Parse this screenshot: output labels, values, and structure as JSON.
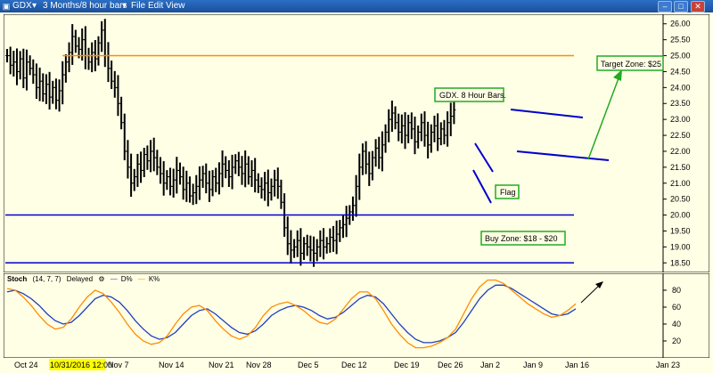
{
  "window": {
    "symbol": "GDX",
    "period": "3 Months/8 hour bars",
    "menu": [
      "File",
      "Edit",
      "View"
    ],
    "controls": [
      "–",
      "□",
      "✕"
    ]
  },
  "colors": {
    "bar": "#000000",
    "target_line": "#ff8c00",
    "channel": "#0000cc",
    "stoch_d": "#1f3fbf",
    "stoch_k": "#ff8c00",
    "annotation_box": "#22aa22",
    "arrow": "#22aa22",
    "background": "#ffffe6"
  },
  "chart_data": [
    {
      "type": "ohlc",
      "title": "GDX. 8 Hour Bars.",
      "x_ticks": [
        "Oct 24",
        "10/31/2016 12:00",
        "Nov 7",
        "Nov 14",
        "Nov 21",
        "Nov 28",
        "Dec 5",
        "Dec 12",
        "Dec 19",
        "Dec 26",
        "Jan 2",
        "Jan 9",
        "Jan 16",
        "Jan 23"
      ],
      "highlighted_x_tick": "10/31/2016 12:00",
      "y_ticks": [
        "18.50",
        "19.00",
        "19.50",
        "20.00",
        "20.50",
        "21.00",
        "21.50",
        "22.00",
        "22.50",
        "23.00",
        "23.50",
        "24.00",
        "24.50",
        "25.00",
        "25.50",
        "26.00"
      ],
      "ylim": [
        18.2,
        26.3
      ],
      "grid": false,
      "close_series": [
        25.0,
        24.7,
        24.8,
        24.5,
        24.9,
        24.3,
        24.8,
        24.6,
        24.4,
        24.0,
        24.2,
        23.8,
        24.1,
        23.7,
        24.0,
        23.6,
        23.9,
        24.4,
        24.8,
        25.1,
        25.6,
        25.3,
        25.2,
        25.5,
        25.0,
        24.8,
        25.1,
        24.9,
        25.4,
        25.8,
        25.0,
        24.6,
        24.2,
        24.0,
        23.5,
        22.9,
        22.0,
        21.5,
        21.0,
        21.2,
        21.6,
        21.4,
        21.9,
        21.7,
        22.0,
        21.8,
        21.5,
        21.3,
        21.0,
        21.2,
        20.9,
        21.1,
        21.4,
        21.2,
        20.8,
        21.0,
        20.6,
        20.7,
        20.9,
        21.1,
        21.3,
        21.0,
        20.8,
        21.2,
        21.0,
        21.3,
        21.6,
        21.4,
        21.2,
        21.5,
        21.7,
        21.5,
        21.3,
        21.6,
        21.2,
        21.4,
        21.1,
        20.9,
        20.8,
        21.0,
        20.7,
        20.9,
        21.1,
        20.9,
        20.4,
        19.6,
        19.1,
        18.9,
        19.0,
        19.2,
        18.8,
        19.1,
        19.0,
        18.9,
        18.8,
        19.0,
        19.2,
        19.0,
        19.1,
        19.3,
        19.2,
        19.4,
        19.6,
        19.7,
        19.9,
        20.1,
        20.3,
        20.9,
        21.5,
        22.0,
        21.6,
        21.3,
        21.8,
        22.1,
        21.8,
        22.2,
        22.6,
        23.0,
        23.2,
        22.9,
        22.6,
        22.8,
        22.5,
        22.9,
        22.7,
        22.3,
        22.6,
        22.9,
        22.5,
        22.2,
        22.6,
        22.8,
        22.4,
        22.7,
        22.5,
        22.9,
        23.1,
        23.3
      ],
      "horizontal_lines": [
        {
          "name": "Target Zone",
          "value": 25.0
        },
        {
          "name": "Buy Zone top",
          "value": 20.0
        },
        {
          "name": "Buy Zone bottom",
          "value": 18.5
        }
      ],
      "annotations": {
        "title_box": "GDX. 8 Hour Bars.",
        "target": "Target Zone: $25",
        "flag": "Flag",
        "buy": "Buy Zone: $18  - $20"
      }
    },
    {
      "type": "line",
      "title": "Stoch",
      "params": "(14, 7, 7)",
      "mode": "Delayed",
      "series_names": [
        "D%",
        "K%"
      ],
      "y_ticks": [
        "20",
        "40",
        "60",
        "80"
      ],
      "ylim": [
        0,
        100
      ],
      "series": [
        {
          "name": "D%",
          "values": [
            78,
            80,
            76,
            70,
            62,
            52,
            44,
            40,
            42,
            50,
            60,
            70,
            74,
            72,
            66,
            56,
            44,
            34,
            26,
            22,
            24,
            30,
            40,
            50,
            56,
            58,
            52,
            44,
            36,
            30,
            28,
            32,
            40,
            50,
            56,
            60,
            62,
            60,
            56,
            50,
            46,
            48,
            54,
            62,
            70,
            74,
            72,
            64,
            52,
            40,
            30,
            22,
            18,
            18,
            20,
            24,
            30,
            42,
            56,
            70,
            80,
            86,
            86,
            82,
            76,
            70,
            64,
            58,
            52,
            50,
            52,
            58
          ]
        },
        {
          "name": "K%",
          "values": [
            82,
            80,
            72,
            62,
            50,
            40,
            34,
            36,
            46,
            60,
            72,
            80,
            76,
            66,
            54,
            40,
            28,
            20,
            16,
            18,
            26,
            40,
            52,
            60,
            62,
            56,
            44,
            34,
            26,
            22,
            26,
            36,
            50,
            60,
            64,
            66,
            62,
            56,
            48,
            42,
            40,
            46,
            58,
            70,
            78,
            78,
            70,
            56,
            40,
            28,
            18,
            12,
            12,
            14,
            18,
            24,
            34,
            52,
            70,
            84,
            92,
            92,
            88,
            80,
            72,
            64,
            58,
            52,
            48,
            50,
            56,
            64
          ]
        }
      ]
    }
  ]
}
